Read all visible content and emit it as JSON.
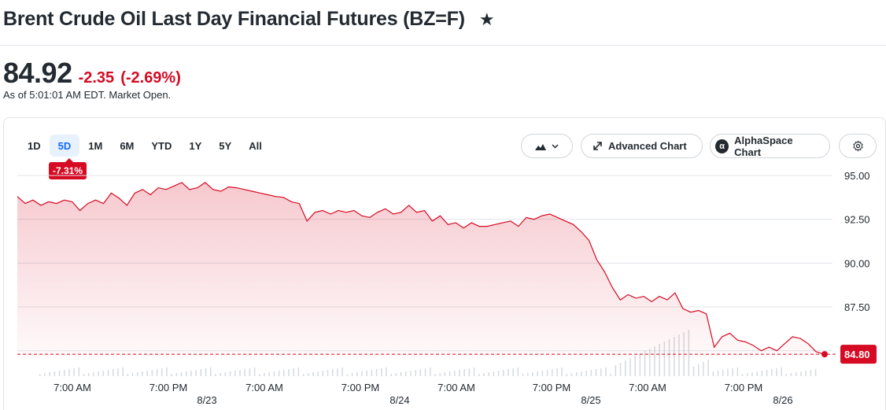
{
  "header": {
    "title": "Brent Crude Oil Last Day Financial Futures (BZ=F)",
    "star_glyph": "★"
  },
  "quote": {
    "price": "84.92",
    "change": "-2.35",
    "change_pct": "(-2.69%)",
    "as_of": "As of 5:01:01 AM EDT. Market Open."
  },
  "ranges": [
    "1D",
    "5D",
    "1M",
    "6M",
    "YTD",
    "1Y",
    "5Y",
    "All"
  ],
  "active_range": "5D",
  "performance_badge": "-7.31%",
  "toolbar": {
    "chart_type_icon": "mountain-chart-icon",
    "advanced_chart": "Advanced Chart",
    "alphaspace_chart": "AlphaSpace Chart",
    "settings_icon": "gear-icon"
  },
  "colors": {
    "down": "#d60a22",
    "accent": "#0f69ff",
    "grid": "#e0e4e9"
  },
  "chart_data": {
    "type": "area",
    "title": "",
    "y_ticks": [
      "95.00",
      "92.50",
      "90.00",
      "87.50"
    ],
    "ylim": [
      83.9,
      95.1
    ],
    "x_ticks": [
      "7:00 AM",
      "7:00 PM",
      "7:00 AM",
      "7:00 PM",
      "7:00 AM",
      "7:00 PM",
      "7:00 AM",
      "7:00 PM"
    ],
    "date_labels": [
      "8/23",
      "8/24",
      "8/25",
      "8/26"
    ],
    "current_price_label": "84.80",
    "reference_line": 84.8,
    "grid": true,
    "series": [
      {
        "values": [
          93.8,
          93.4,
          93.6,
          93.3,
          93.5,
          93.4,
          93.6,
          93.5,
          93.0,
          93.4,
          93.6,
          93.4,
          94.0,
          93.7,
          93.3,
          94.0,
          94.2,
          93.9,
          94.3,
          94.2,
          94.4,
          94.6,
          94.2,
          94.3,
          94.6,
          94.2,
          94.1,
          94.35,
          94.3,
          94.2,
          94.1,
          94.0,
          93.9,
          93.8,
          93.75,
          93.5,
          93.4,
          92.4,
          92.9,
          93.0,
          92.8,
          93.0,
          92.9,
          93.0,
          92.7,
          92.6,
          92.9,
          93.1,
          92.8,
          92.9,
          93.3,
          92.9,
          93.0,
          92.4,
          92.7,
          92.2,
          92.3,
          92.0,
          92.3,
          92.1,
          92.1,
          92.2,
          92.3,
          92.4,
          92.1,
          92.6,
          92.5,
          92.7,
          92.8,
          92.6,
          92.4,
          92.2,
          91.8,
          91.3,
          90.2,
          89.5,
          88.6,
          87.9,
          88.2,
          88.0,
          88.1,
          87.8,
          88.1,
          87.9,
          88.3,
          87.4,
          87.2,
          87.3,
          87.1,
          85.2,
          85.8,
          86.0,
          85.6,
          85.5,
          85.3,
          85.0,
          85.2,
          85.0,
          85.4,
          85.8,
          85.7,
          85.4,
          84.95,
          84.8
        ]
      }
    ]
  }
}
